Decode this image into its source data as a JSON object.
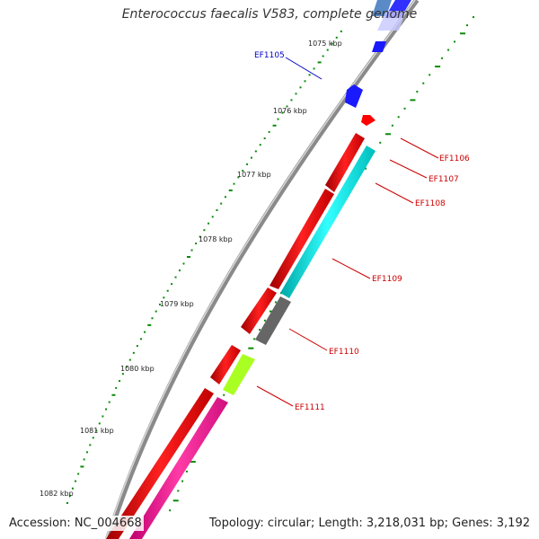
{
  "title": "Enterococcus faecalis V583, complete genome",
  "footer": {
    "accession": "Accession: NC_004668",
    "summary": "Topology: circular; Length: 3,218,031 bp; Genes: 3,192"
  },
  "scale": {
    "unit": "kbp",
    "labels": [
      "1075 kbp",
      "1076 kbp",
      "1077 kbp",
      "1078 kbp",
      "1079 kbp",
      "1080 kbp",
      "1081 kbp",
      "1082 kbp"
    ]
  },
  "genes": [
    {
      "id": "EF1105",
      "label": "EF1105",
      "strand": "+",
      "color": "#1a1aff",
      "label_color": "#0000cc"
    },
    {
      "id": "EF1106",
      "label": "EF1106",
      "strand": "+",
      "color": "#ff0000",
      "label_color": "#cc0000"
    },
    {
      "id": "EF1107",
      "label": "EF1107",
      "strand": "+",
      "color": "#ff0000",
      "label_color": "#cc0000"
    },
    {
      "id": "EF1108",
      "label": "EF1108",
      "strand": "+",
      "color": "#00e5e5",
      "label_color": "#cc0000"
    },
    {
      "id": "EF1109",
      "label": "EF1109",
      "strand": "+",
      "color": "#ff0000",
      "label_color": "#cc0000"
    },
    {
      "id": "EF1110",
      "label": "EF1110",
      "strand": "+",
      "color": "#666666",
      "label_color": "#cc0000"
    },
    {
      "id": "EF1111",
      "label": "EF1111",
      "strand": "+",
      "color": "#aaff22",
      "label_color": "#cc0000"
    }
  ],
  "colors": {
    "backbone": "#888888",
    "red_cds": "#ff0000",
    "cyan_cds": "#00e5e5",
    "gray_cds": "#666666",
    "lime_cds": "#aaff22",
    "pink_cds": "#ff1493",
    "blue_cds": "#1a1aff",
    "tick_green": "#0a8a0a"
  }
}
